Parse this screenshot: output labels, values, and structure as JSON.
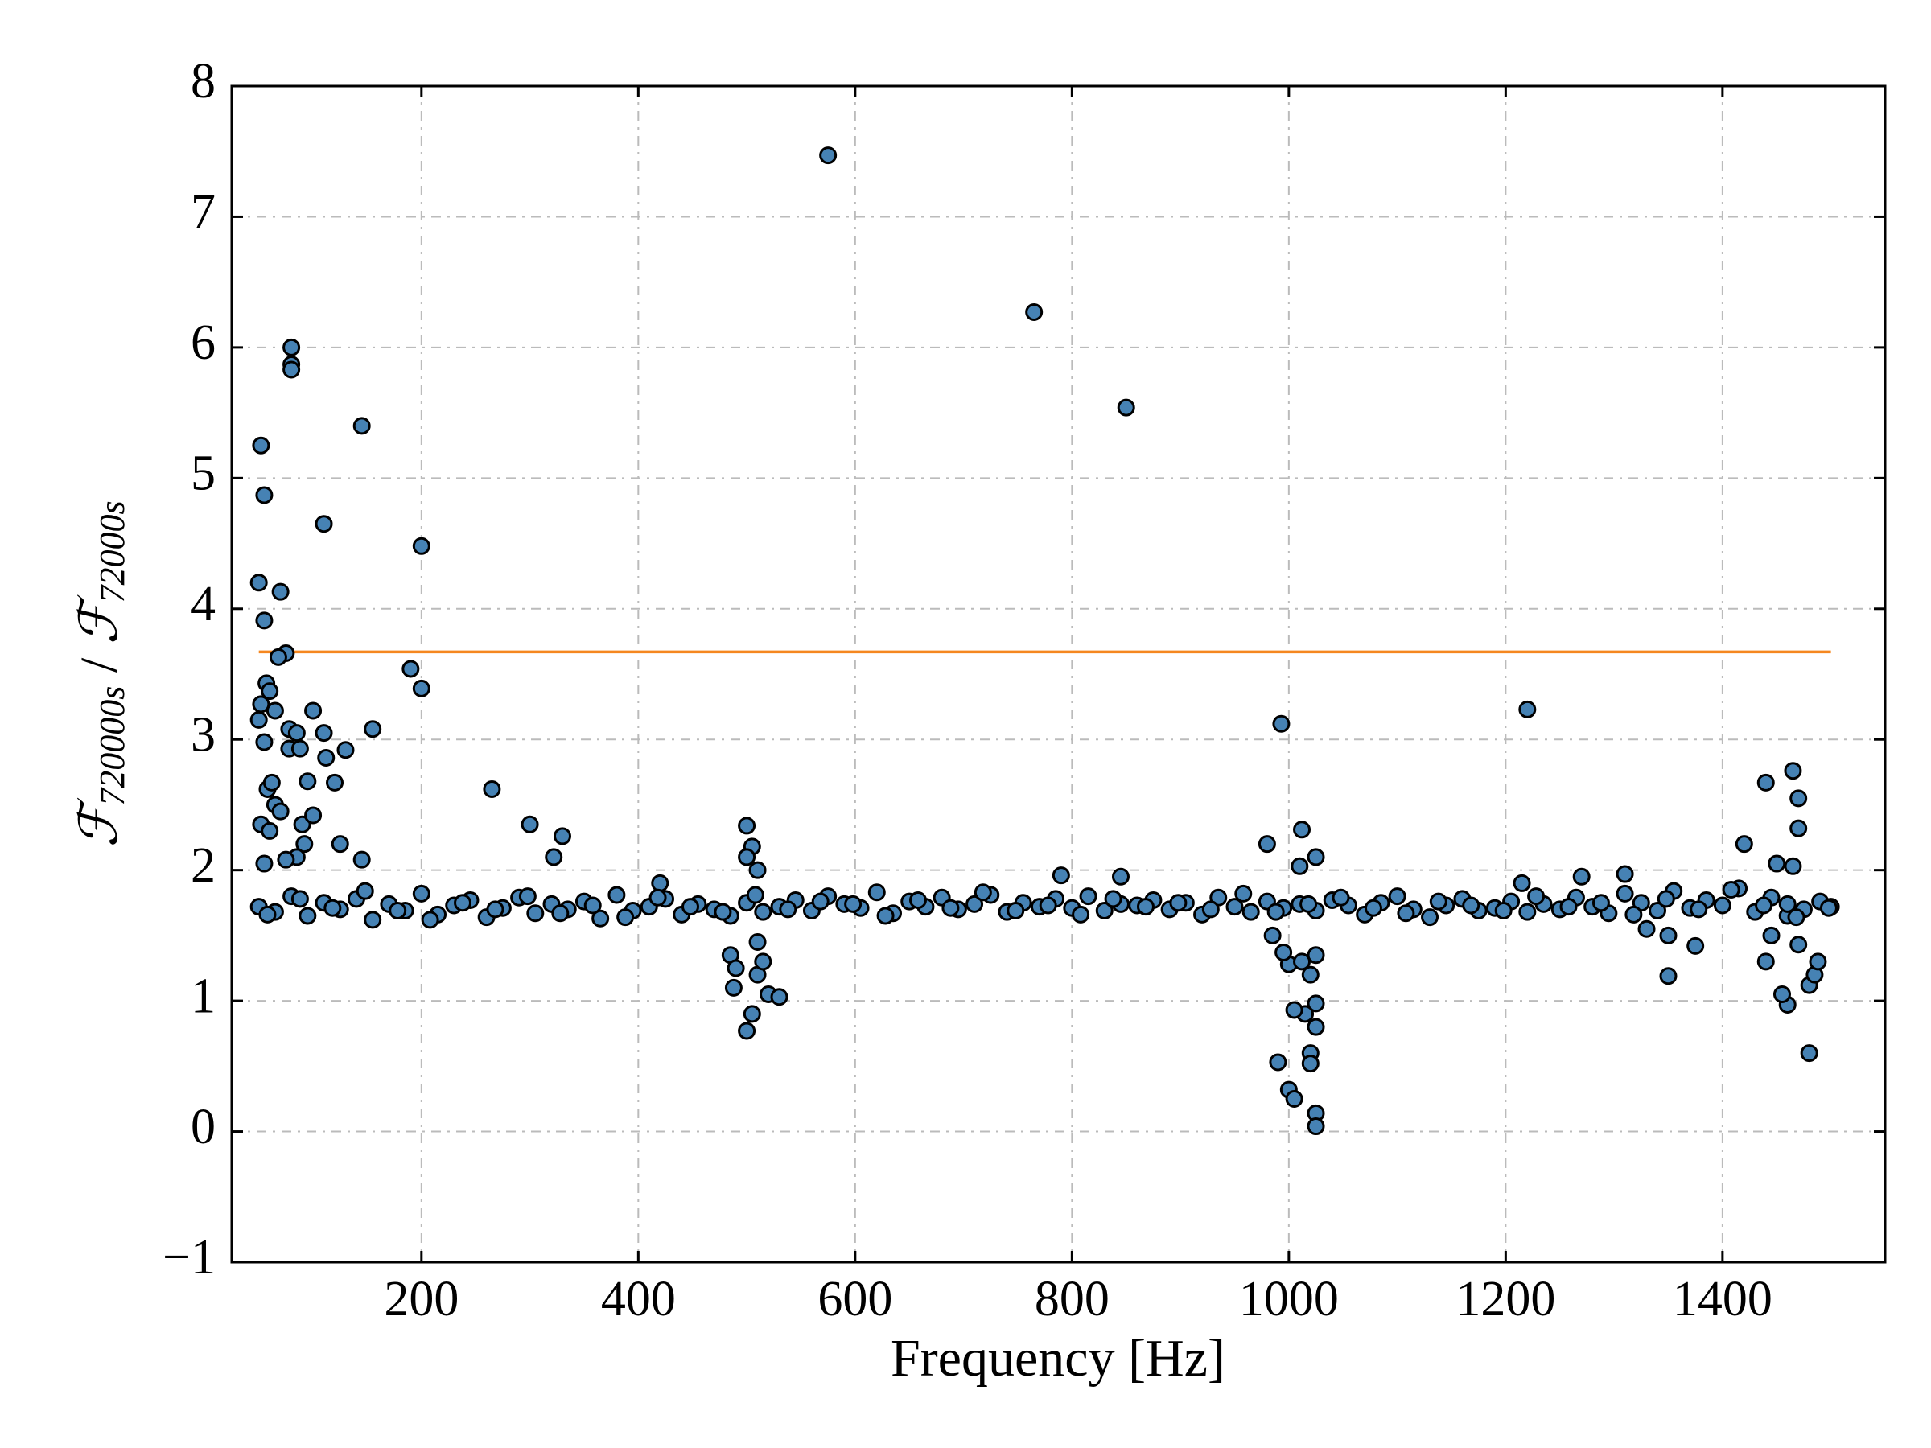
{
  "chart_data": {
    "type": "scatter",
    "x_label": "Frequency [Hz]",
    "y_label": [
      "ℱ",
      "720000s",
      " / ",
      "ℱ",
      "72000s"
    ],
    "xlim": [
      25,
      1550
    ],
    "ylim": [
      -1,
      8
    ],
    "xticks": [
      200,
      400,
      600,
      800,
      1000,
      1200,
      1400
    ],
    "yticks": [
      {
        "value": -1,
        "label": "−1"
      },
      0,
      1,
      2,
      3,
      4,
      5,
      6,
      7,
      8
    ],
    "grid": true,
    "color": "#4682b4",
    "edgecolor": "#000000",
    "hline": {
      "y": 3.67,
      "xmin": 50,
      "xmax": 1500,
      "color": "#f5871f"
    },
    "x": [
      52,
      55,
      50,
      55,
      70,
      75,
      68,
      57,
      60,
      50,
      52,
      65,
      55,
      78,
      85,
      78,
      88,
      80,
      80,
      80,
      145,
      110,
      200,
      190,
      200,
      100,
      110,
      155,
      130,
      112,
      95,
      120,
      58,
      62,
      65,
      70,
      52,
      60,
      90,
      100,
      125,
      92,
      85,
      75,
      55,
      145,
      265,
      300,
      330,
      322,
      575,
      765,
      850,
      993,
      1220,
      1440,
      1465,
      1470,
      1470,
      1420,
      980,
      1012,
      1025,
      1010,
      500,
      505,
      510,
      500,
      485,
      490,
      488,
      500,
      505,
      510,
      515,
      520,
      530,
      510,
      990,
      1000,
      1005,
      1020,
      1020,
      1025,
      1025,
      1025,
      1025,
      1015,
      1005,
      1000,
      1012,
      995,
      985,
      1020,
      1025,
      1480,
      1460,
      1455,
      1480,
      1485,
      1488,
      1440,
      1445,
      1350,
      1350,
      1375,
      1330,
      1460,
      1470,
      1465,
      1450,
      1270,
      1310,
      1215,
      790,
      845,
      420,
      50,
      65,
      80,
      95,
      110,
      125,
      140,
      155,
      170,
      185,
      200,
      215,
      230,
      245,
      260,
      275,
      290,
      305,
      320,
      335,
      350,
      365,
      380,
      395,
      410,
      425,
      440,
      455,
      470,
      485,
      500,
      515,
      530,
      545,
      560,
      575,
      590,
      605,
      620,
      635,
      650,
      665,
      680,
      695,
      710,
      725,
      740,
      755,
      770,
      785,
      800,
      815,
      830,
      845,
      860,
      875,
      890,
      905,
      920,
      935,
      950,
      965,
      980,
      995,
      1010,
      1025,
      1040,
      1055,
      1070,
      1085,
      1100,
      1115,
      1130,
      1145,
      1160,
      1175,
      1190,
      1205,
      1220,
      1235,
      1250,
      1265,
      1280,
      1295,
      1310,
      1325,
      1340,
      1355,
      1370,
      1385,
      1400,
      1415,
      1430,
      1445,
      1460,
      1475,
      1490,
      1500,
      58,
      88,
      118,
      148,
      178,
      208,
      238,
      268,
      298,
      328,
      358,
      388,
      418,
      448,
      478,
      508,
      538,
      568,
      598,
      628,
      658,
      688,
      718,
      748,
      778,
      808,
      838,
      868,
      898,
      928,
      958,
      988,
      1018,
      1048,
      1078,
      1108,
      1138,
      1168,
      1198,
      1228,
      1258,
      1288,
      1318,
      1348,
      1378,
      1408,
      1438,
      1468,
      1498
    ],
    "y": [
      5.25,
      4.87,
      4.2,
      3.91,
      4.13,
      3.66,
      3.63,
      3.43,
      3.37,
      3.15,
      3.27,
      3.22,
      2.98,
      3.08,
      3.05,
      2.93,
      2.93,
      6.0,
      5.87,
      5.83,
      5.4,
      4.65,
      4.48,
      3.54,
      3.39,
      3.22,
      3.05,
      3.08,
      2.92,
      2.86,
      2.68,
      2.67,
      2.62,
      2.67,
      2.5,
      2.45,
      2.35,
      2.3,
      2.35,
      2.42,
      2.2,
      2.2,
      2.1,
      2.08,
      2.05,
      2.08,
      2.62,
      2.35,
      2.26,
      2.1,
      7.47,
      6.27,
      5.54,
      3.12,
      3.23,
      2.67,
      2.76,
      2.55,
      2.32,
      2.2,
      2.2,
      2.31,
      2.1,
      2.03,
      2.34,
      2.18,
      2.0,
      2.1,
      1.35,
      1.25,
      1.1,
      0.77,
      0.9,
      1.2,
      1.3,
      1.05,
      1.03,
      1.45,
      0.53,
      0.32,
      0.25,
      0.6,
      0.52,
      0.14,
      0.04,
      0.8,
      0.98,
      0.9,
      0.93,
      1.28,
      1.3,
      1.37,
      1.5,
      1.2,
      1.35,
      0.6,
      0.97,
      1.05,
      1.12,
      1.2,
      1.3,
      1.3,
      1.5,
      1.19,
      1.5,
      1.42,
      1.55,
      1.65,
      1.43,
      2.03,
      2.05,
      1.95,
      1.97,
      1.9,
      1.96,
      1.95,
      1.9,
      1.72,
      1.68,
      1.8,
      1.65,
      1.75,
      1.7,
      1.78,
      1.62,
      1.74,
      1.69,
      1.82,
      1.66,
      1.73,
      1.77,
      1.64,
      1.71,
      1.79,
      1.67,
      1.74,
      1.7,
      1.76,
      1.63,
      1.81,
      1.69,
      1.72,
      1.78,
      1.66,
      1.74,
      1.7,
      1.65,
      1.75,
      1.68,
      1.72,
      1.77,
      1.69,
      1.8,
      1.74,
      1.71,
      1.83,
      1.67,
      1.76,
      1.72,
      1.79,
      1.7,
      1.74,
      1.81,
      1.68,
      1.75,
      1.72,
      1.78,
      1.71,
      1.8,
      1.69,
      1.74,
      1.73,
      1.77,
      1.7,
      1.75,
      1.66,
      1.79,
      1.72,
      1.68,
      1.76,
      1.71,
      1.74,
      1.69,
      1.77,
      1.73,
      1.66,
      1.75,
      1.8,
      1.7,
      1.64,
      1.73,
      1.78,
      1.69,
      1.71,
      1.76,
      1.68,
      1.74,
      1.7,
      1.79,
      1.72,
      1.67,
      1.82,
      1.75,
      1.69,
      1.84,
      1.71,
      1.77,
      1.73,
      1.86,
      1.68,
      1.79,
      1.74,
      1.7,
      1.76,
      1.72,
      1.66,
      1.78,
      1.71,
      1.84,
      1.69,
      1.62,
      1.75,
      1.7,
      1.8,
      1.67,
      1.73,
      1.64,
      1.79,
      1.72,
      1.68,
      1.81,
      1.7,
      1.76,
      1.74,
      1.65,
      1.77,
      1.71,
      1.83,
      1.69,
      1.73,
      1.66,
      1.78,
      1.72,
      1.75,
      1.7,
      1.82,
      1.68,
      1.74,
      1.79,
      1.71,
      1.67,
      1.76,
      1.73,
      1.69,
      1.8,
      1.72,
      1.75,
      1.66,
      1.78,
      1.7,
      1.85,
      1.73,
      1.64,
      1.71
    ]
  }
}
